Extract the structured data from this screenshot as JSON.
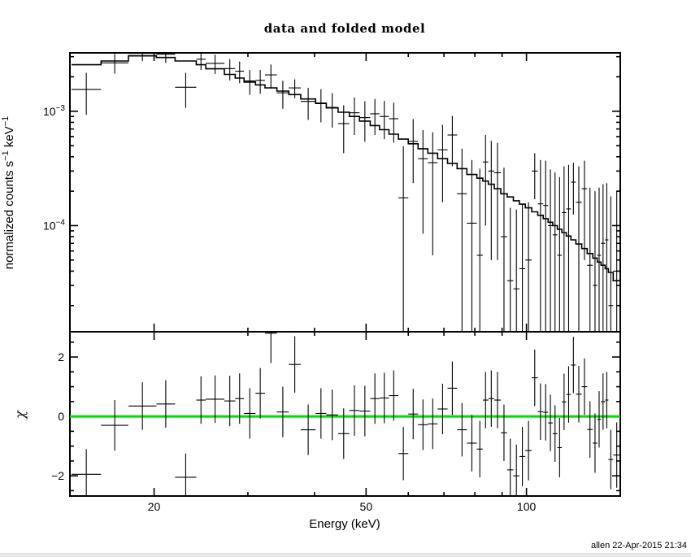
{
  "page": {
    "background": "#ffffff",
    "foreground": "#000000"
  },
  "chart_data": {
    "type": "scatter",
    "title": "data and folded model",
    "xlabel": "Energy (keV)",
    "annotation": "allen 22-Apr-2015 21:34",
    "x_scale": "log",
    "x_range": [
      13.9,
      150
    ],
    "x_major_ticks": [
      {
        "v": 20,
        "label": "20"
      },
      {
        "v": 50,
        "label": "50"
      },
      {
        "v": 100,
        "label": "100"
      }
    ],
    "x_minor_ticks": [
      30,
      40,
      60,
      70,
      80,
      90
    ],
    "panels": [
      {
        "name": "spectrum",
        "ylabel": "normalized counts s^{−1} keV^{−1}",
        "y_scale": "log",
        "y_range": [
          1.18e-05,
          0.00324
        ],
        "y_major_ticks": [
          {
            "v": 0.001,
            "label": "10^{−3}"
          },
          {
            "v": 0.0001,
            "label": "10^{−4}"
          }
        ],
        "y_minor_ticks": [
          0.003,
          0.002,
          0.0009,
          0.0008,
          0.0007,
          0.0006,
          0.0005,
          0.0004,
          0.0003,
          0.0002,
          9e-05,
          8e-05,
          7e-05,
          6e-05,
          5e-05,
          4e-05,
          3e-05,
          2e-05
        ],
        "model_color": "#000000",
        "data_color": "#000000"
      },
      {
        "name": "residuals",
        "ylabel": "χ",
        "y_scale": "linear",
        "y_range": [
          -2.68,
          2.85
        ],
        "y_major_ticks": [
          {
            "v": 2,
            "label": "2"
          },
          {
            "v": 0,
            "label": "0"
          },
          {
            "v": -2,
            "label": "−2"
          }
        ],
        "y_minor_ticks": [
          2.5,
          1.5,
          1,
          0.5,
          -0.5,
          -1,
          -1.5,
          -2.5
        ],
        "zero_line_color": "#00dd00",
        "zero_line_value": 0
      }
    ],
    "bin_fields": [
      "e_lo",
      "e_hi",
      "model",
      "data",
      "data_err",
      "chi",
      "chi_err"
    ],
    "bins": [
      [
        14.0,
        15.9,
        0.00255,
        0.00155,
        0.00062,
        -1.95,
        0.85
      ],
      [
        15.9,
        17.9,
        0.00275,
        0.00265,
        0.00052,
        -0.3,
        0.85
      ],
      [
        17.9,
        20.2,
        0.00305,
        0.0032,
        0.00046,
        0.35,
        0.8
      ],
      [
        20.2,
        21.9,
        0.00295,
        0.00315,
        0.0005,
        0.42,
        0.8
      ],
      [
        21.9,
        24.0,
        0.00275,
        0.00162,
        0.00055,
        -2.05,
        0.8
      ],
      [
        24.0,
        25.0,
        0.00255,
        0.00285,
        0.00055,
        0.55,
        0.8
      ],
      [
        25.0,
        27.1,
        0.00235,
        0.00262,
        0.0005,
        0.58,
        0.8
      ],
      [
        27.1,
        28.4,
        0.0021,
        0.00236,
        0.0005,
        0.52,
        0.85
      ],
      [
        28.4,
        29.5,
        0.00195,
        0.00224,
        0.00048,
        0.6,
        0.85
      ],
      [
        29.5,
        31.0,
        0.0018,
        0.00184,
        0.00045,
        0.1,
        0.85
      ],
      [
        31.0,
        32.3,
        0.0017,
        0.00186,
        0.00044,
        0.78,
        0.85
      ],
      [
        32.3,
        34.0,
        0.0016,
        0.00208,
        0.00048,
        2.8,
        1.0
      ],
      [
        34.0,
        35.8,
        0.0015,
        0.00145,
        0.0004,
        0.15,
        0.85
      ],
      [
        35.8,
        37.7,
        0.0014,
        0.0016,
        0.0003,
        1.75,
        0.95
      ],
      [
        37.7,
        40.2,
        0.00128,
        0.00122,
        0.00038,
        -0.45,
        0.85
      ],
      [
        40.2,
        42.1,
        0.00117,
        0.00118,
        0.00038,
        0.1,
        0.85
      ],
      [
        42.1,
        44.3,
        0.00107,
        0.00108,
        0.00036,
        0.05,
        0.85
      ],
      [
        44.3,
        46.5,
        0.00098,
        0.00078,
        0.00035,
        -0.58,
        0.85
      ],
      [
        46.5,
        48.6,
        0.0009,
        0.00097,
        0.00035,
        0.2,
        0.85
      ],
      [
        48.6,
        50.9,
        0.00082,
        0.00088,
        0.00034,
        0.18,
        0.85
      ],
      [
        50.9,
        53.0,
        0.00075,
        0.00095,
        0.00033,
        0.6,
        0.85
      ],
      [
        53.0,
        55.2,
        0.00069,
        0.0009,
        0.00033,
        0.62,
        0.85
      ],
      [
        55.2,
        57.5,
        0.00063,
        0.00086,
        0.00033,
        0.7,
        0.85
      ],
      [
        57.5,
        60.0,
        0.00057,
        0.000175,
        0.00032,
        -1.25,
        0.9
      ],
      [
        60.0,
        62.6,
        0.00052,
        0.000545,
        0.00031,
        0.08,
        0.85
      ],
      [
        62.6,
        65.3,
        0.00047,
        0.000385,
        0.0003,
        -0.28,
        0.85
      ],
      [
        65.3,
        68.1,
        0.00043,
        0.000355,
        0.0003,
        -0.25,
        0.85
      ],
      [
        68.1,
        71.1,
        0.000385,
        0.00046,
        0.0003,
        0.25,
        0.85
      ],
      [
        71.1,
        74.1,
        0.00035,
        0.00062,
        0.00029,
        0.95,
        0.9
      ],
      [
        74.1,
        77.3,
        0.000315,
        0.00019,
        0.00028,
        -0.45,
        0.9
      ],
      [
        77.3,
        80.7,
        0.00028,
        0.000105,
        0.00027,
        -0.9,
        0.95
      ],
      [
        80.7,
        82.8,
        0.00026,
        5.5e-05,
        0.00026,
        -1.1,
        0.95
      ],
      [
        82.8,
        84.8,
        0.000245,
        0.00036,
        0.00026,
        0.55,
        0.95
      ],
      [
        84.8,
        87.0,
        0.00023,
        0.0003,
        0.00025,
        0.6,
        0.95
      ],
      [
        87.0,
        89.5,
        0.00021,
        0.00029,
        0.00024,
        0.55,
        0.95
      ],
      [
        89.5,
        92.0,
        0.00019,
        8e-05,
        0.00024,
        -0.55,
        0.95
      ],
      [
        92.0,
        94.5,
        0.000178,
        3.3e-05,
        0.00011,
        -1.8,
        1.05
      ],
      [
        94.5,
        97.0,
        0.000165,
        2.8e-05,
        0.00011,
        -2.0,
        1.05
      ],
      [
        97.0,
        99.5,
        0.000154,
        4.2e-05,
        0.00011,
        -1.35,
        1.0
      ],
      [
        99.5,
        102.3,
        0.000143,
        5e-05,
        0.00011,
        -1.15,
        1.0
      ],
      [
        102.3,
        105.0,
        0.000132,
        0.0003,
        0.00013,
        1.3,
        0.95
      ],
      [
        105.0,
        107.5,
        0.000123,
        0.000155,
        0.00022,
        0.16,
        0.95
      ],
      [
        107.5,
        109.8,
        0.000115,
        0.00015,
        0.00022,
        0.14,
        0.95
      ],
      [
        109.8,
        112.0,
        0.000107,
        0.0001,
        0.00021,
        -0.22,
        0.95
      ],
      [
        112.0,
        114.3,
        0.0001,
        8.3e-05,
        0.00021,
        -0.58,
        0.95
      ],
      [
        114.3,
        116.5,
        9.3e-05,
        5.5e-05,
        0.00021,
        -1.05,
        1.0
      ],
      [
        116.5,
        118.8,
        8.7e-05,
        0.00013,
        0.0002,
        0.49,
        0.95
      ],
      [
        118.8,
        121.2,
        8.1e-05,
        0.00014,
        0.0002,
        0.74,
        0.95
      ],
      [
        121.2,
        123.8,
        7.5e-05,
        0.00024,
        0.000115,
        1.73,
        0.95
      ],
      [
        123.8,
        127.0,
        6.9e-05,
        0.00016,
        0.00017,
        0.75,
        0.95
      ],
      [
        127.0,
        130.0,
        6.3e-05,
        0.00021,
        0.00016,
        1.0,
        0.95
      ],
      [
        130.0,
        133.2,
        5.7e-05,
        4.5e-05,
        0.00017,
        -0.44,
        0.95
      ],
      [
        133.2,
        135.8,
        5.2e-05,
        3e-05,
        0.00017,
        -0.9,
        1.0
      ],
      [
        135.8,
        138.0,
        4.8e-05,
        5.5e-05,
        0.00016,
        -0.1,
        0.95
      ],
      [
        138.0,
        140.5,
        4.5e-05,
        7e-05,
        0.00016,
        0.5,
        0.95
      ],
      [
        140.5,
        142.5,
        4.2e-05,
        7.5e-05,
        0.00016,
        0.55,
        0.95
      ],
      [
        142.5,
        145.5,
        3.9e-05,
        2e-05,
        0.00016,
        -1.45,
        1.0
      ],
      [
        145.5,
        150.0,
        3.3e-05,
        4e-05,
        0.00016,
        -1.3,
        1.1
      ]
    ]
  }
}
